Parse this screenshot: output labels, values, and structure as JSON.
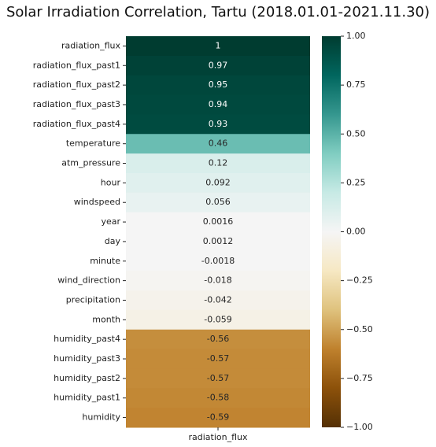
{
  "chart_data": {
    "type": "heatmap",
    "title": "Solar Irradiation Correlation, Tartu (2018.01.01-2021.11.30)",
    "x": [
      "radiation_flux"
    ],
    "categories": [
      "radiation_flux",
      "radiation_flux_past1",
      "radiation_flux_past2",
      "radiation_flux_past3",
      "radiation_flux_past4",
      "temperature",
      "atm_pressure",
      "hour",
      "windspeed",
      "year",
      "day",
      "minute",
      "wind_direction",
      "precipitation",
      "month",
      "humidity_past4",
      "humidity_past3",
      "humidity_past2",
      "humidity_past1",
      "humidity"
    ],
    "values": [
      1,
      0.97,
      0.95,
      0.94,
      0.93,
      0.46,
      0.12,
      0.092,
      0.056,
      0.0016,
      0.0012,
      -0.0018,
      -0.018,
      -0.042,
      -0.059,
      -0.56,
      -0.57,
      -0.57,
      -0.58,
      -0.59
    ],
    "colormap": "BrBG",
    "zlim": [
      -1,
      1
    ],
    "zticks": [
      {
        "value": 1,
        "label": "1.00"
      },
      {
        "value": 0.75,
        "label": "0.75"
      },
      {
        "value": 0.5,
        "label": "0.50"
      },
      {
        "value": 0.25,
        "label": "0.25"
      },
      {
        "value": 0,
        "label": "0.00"
      },
      {
        "value": -0.25,
        "label": "−0.25"
      },
      {
        "value": -0.5,
        "label": "−0.50"
      },
      {
        "value": -0.75,
        "label": "−0.75"
      },
      {
        "value": -1,
        "label": "−1.00"
      }
    ]
  }
}
